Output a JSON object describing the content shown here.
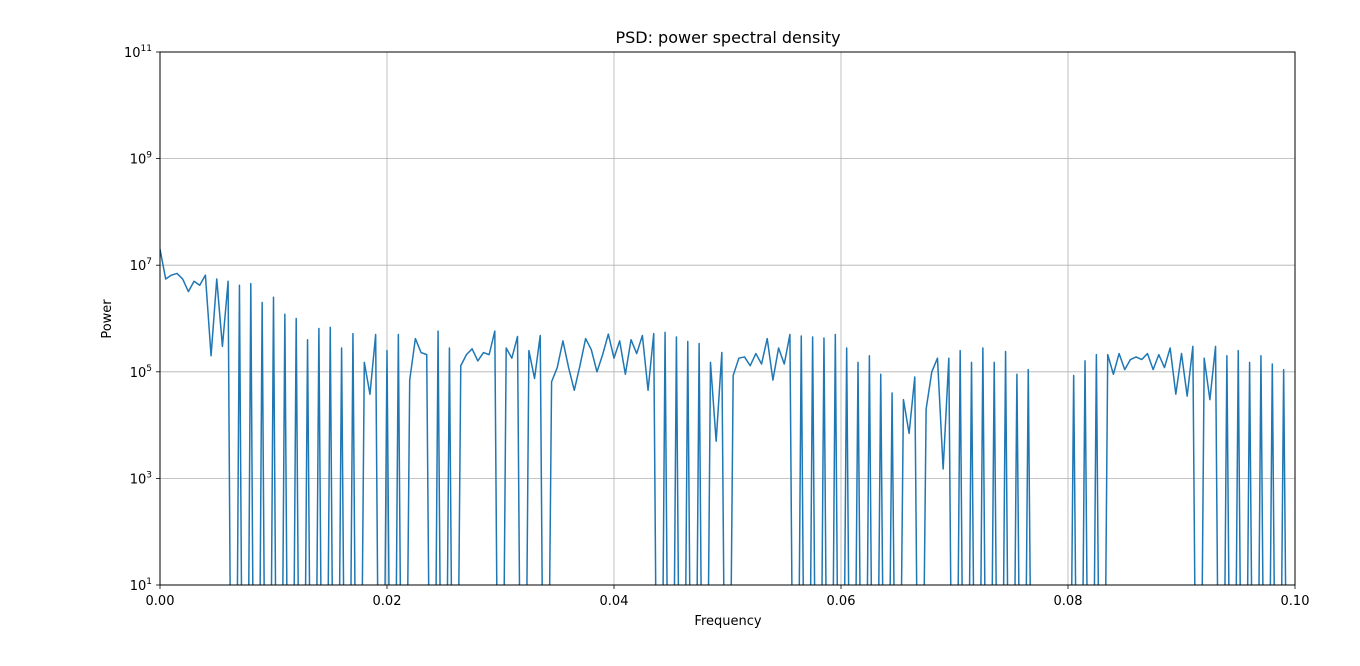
{
  "chart_data": {
    "type": "line",
    "title": "PSD: power spectral density",
    "xlabel": "Frequency",
    "ylabel": "Power",
    "xlim": [
      0.0,
      0.1
    ],
    "ylim": [
      10,
      100000000000
    ],
    "yscale": "log",
    "grid": true,
    "line_color": "#1f77b4",
    "x_ticks": [
      {
        "value": 0.0,
        "label": "0.00"
      },
      {
        "value": 0.02,
        "label": "0.02"
      },
      {
        "value": 0.04,
        "label": "0.04"
      },
      {
        "value": 0.06,
        "label": "0.06"
      },
      {
        "value": 0.08,
        "label": "0.08"
      },
      {
        "value": 0.1,
        "label": "0.10"
      }
    ],
    "y_ticks": [
      {
        "value": 10,
        "base": "10",
        "exp": "1"
      },
      {
        "value": 1000,
        "base": "10",
        "exp": "3"
      },
      {
        "value": 100000,
        "base": "10",
        "exp": "5"
      },
      {
        "value": 10000000,
        "base": "10",
        "exp": "7"
      },
      {
        "value": 1000000000,
        "base": "10",
        "exp": "9"
      },
      {
        "value": 100000000000,
        "base": "10",
        "exp": "11"
      }
    ],
    "series": [
      {
        "points": [
          [
            0.0,
            20000000
          ],
          [
            0.0005,
            5500000
          ],
          [
            0.001,
            6500000
          ],
          [
            0.0015,
            7000000
          ],
          [
            0.002,
            5500000
          ],
          [
            0.0025,
            3200000
          ],
          [
            0.003,
            5000000
          ],
          [
            0.0035,
            4200000
          ],
          [
            0.004,
            6500000
          ],
          [
            0.0045,
            200000
          ],
          [
            0.005,
            5500000
          ],
          [
            0.0055,
            300000
          ],
          [
            0.006,
            5000000
          ],
          [
            0.0062,
            0
          ],
          [
            0.0068,
            0
          ],
          [
            0.007,
            4200000
          ],
          [
            0.0072,
            0
          ],
          [
            0.0078,
            0
          ],
          [
            0.008,
            4500000
          ],
          [
            0.0082,
            0
          ],
          [
            0.0088,
            0
          ],
          [
            0.009,
            2000000
          ],
          [
            0.0092,
            0
          ],
          [
            0.0098,
            0
          ],
          [
            0.01,
            2500000
          ],
          [
            0.0102,
            0
          ],
          [
            0.0108,
            0
          ],
          [
            0.011,
            1200000
          ],
          [
            0.0112,
            0
          ],
          [
            0.0118,
            0
          ],
          [
            0.012,
            1000000
          ],
          [
            0.0122,
            0
          ],
          [
            0.0128,
            0
          ],
          [
            0.013,
            400000
          ],
          [
            0.0132,
            0
          ],
          [
            0.0138,
            0
          ],
          [
            0.014,
            650000
          ],
          [
            0.0142,
            0
          ],
          [
            0.0148,
            0
          ],
          [
            0.015,
            680000
          ],
          [
            0.0152,
            0
          ],
          [
            0.0158,
            0
          ],
          [
            0.016,
            280000
          ],
          [
            0.0162,
            0
          ],
          [
            0.0168,
            0
          ],
          [
            0.017,
            520000
          ],
          [
            0.0172,
            0
          ],
          [
            0.0178,
            0
          ],
          [
            0.018,
            150000
          ],
          [
            0.0185,
            38000
          ],
          [
            0.019,
            500000
          ],
          [
            0.0192,
            0
          ],
          [
            0.0198,
            0
          ],
          [
            0.02,
            250000
          ],
          [
            0.0202,
            0
          ],
          [
            0.0208,
            0
          ],
          [
            0.021,
            500000
          ],
          [
            0.0212,
            0
          ],
          [
            0.0218,
            0
          ],
          [
            0.022,
            70000
          ],
          [
            0.0225,
            420000
          ],
          [
            0.023,
            230000
          ],
          [
            0.0235,
            210000
          ],
          [
            0.0237,
            0
          ],
          [
            0.0243,
            0
          ],
          [
            0.0245,
            580000
          ],
          [
            0.0247,
            0
          ],
          [
            0.0253,
            0
          ],
          [
            0.0255,
            280000
          ],
          [
            0.0257,
            0
          ],
          [
            0.0263,
            0
          ],
          [
            0.0265,
            130000
          ],
          [
            0.027,
            210000
          ],
          [
            0.0275,
            270000
          ],
          [
            0.028,
            160000
          ],
          [
            0.0285,
            230000
          ],
          [
            0.029,
            210000
          ],
          [
            0.0295,
            580000
          ],
          [
            0.0297,
            0
          ],
          [
            0.0303,
            0
          ],
          [
            0.0305,
            280000
          ],
          [
            0.031,
            180000
          ],
          [
            0.0315,
            460000
          ],
          [
            0.0317,
            0
          ],
          [
            0.0323,
            0
          ],
          [
            0.0325,
            250000
          ],
          [
            0.033,
            75000
          ],
          [
            0.0335,
            480000
          ],
          [
            0.0337,
            0
          ],
          [
            0.0343,
            0
          ],
          [
            0.0345,
            65000
          ],
          [
            0.035,
            120000
          ],
          [
            0.0355,
            380000
          ],
          [
            0.036,
            120000
          ],
          [
            0.0365,
            45000
          ],
          [
            0.037,
            130000
          ],
          [
            0.0375,
            420000
          ],
          [
            0.038,
            260000
          ],
          [
            0.0385,
            100000
          ],
          [
            0.039,
            210000
          ],
          [
            0.0395,
            510000
          ],
          [
            0.04,
            180000
          ],
          [
            0.0405,
            380000
          ],
          [
            0.041,
            90000
          ],
          [
            0.0415,
            400000
          ],
          [
            0.042,
            220000
          ],
          [
            0.0425,
            480000
          ],
          [
            0.043,
            45000
          ],
          [
            0.0435,
            520000
          ],
          [
            0.0437,
            0
          ],
          [
            0.0443,
            0
          ],
          [
            0.0445,
            550000
          ],
          [
            0.0447,
            0
          ],
          [
            0.0453,
            0
          ],
          [
            0.0455,
            450000
          ],
          [
            0.0457,
            0
          ],
          [
            0.0463,
            0
          ],
          [
            0.0465,
            370000
          ],
          [
            0.0467,
            0
          ],
          [
            0.0473,
            0
          ],
          [
            0.0475,
            340000
          ],
          [
            0.0477,
            0
          ],
          [
            0.0483,
            0
          ],
          [
            0.0485,
            150000
          ],
          [
            0.049,
            5000
          ],
          [
            0.0495,
            230000
          ],
          [
            0.0497,
            0
          ],
          [
            0.0503,
            0
          ],
          [
            0.0505,
            85000
          ],
          [
            0.051,
            180000
          ],
          [
            0.0515,
            190000
          ],
          [
            0.052,
            130000
          ],
          [
            0.0525,
            220000
          ],
          [
            0.053,
            140000
          ],
          [
            0.0535,
            420000
          ],
          [
            0.054,
            70000
          ],
          [
            0.0545,
            280000
          ],
          [
            0.055,
            140000
          ],
          [
            0.0555,
            500000
          ],
          [
            0.0557,
            0
          ],
          [
            0.0563,
            0
          ],
          [
            0.0565,
            470000
          ],
          [
            0.0567,
            0
          ],
          [
            0.0573,
            0
          ],
          [
            0.0575,
            450000
          ],
          [
            0.0577,
            0
          ],
          [
            0.0583,
            0
          ],
          [
            0.0585,
            430000
          ],
          [
            0.0587,
            0
          ],
          [
            0.0593,
            0
          ],
          [
            0.0595,
            500000
          ],
          [
            0.0597,
            0
          ],
          [
            0.0603,
            0
          ],
          [
            0.0605,
            280000
          ],
          [
            0.0607,
            0
          ],
          [
            0.0613,
            0
          ],
          [
            0.0615,
            150000
          ],
          [
            0.0617,
            0
          ],
          [
            0.0623,
            0
          ],
          [
            0.0625,
            200000
          ],
          [
            0.0627,
            0
          ],
          [
            0.0633,
            0
          ],
          [
            0.0635,
            90000
          ],
          [
            0.0637,
            0
          ],
          [
            0.0643,
            0
          ],
          [
            0.0645,
            40000
          ],
          [
            0.0647,
            0
          ],
          [
            0.0653,
            0
          ],
          [
            0.0655,
            30000
          ],
          [
            0.066,
            7000
          ],
          [
            0.0665,
            80000
          ],
          [
            0.0667,
            0
          ],
          [
            0.0673,
            0
          ],
          [
            0.0675,
            20000
          ],
          [
            0.068,
            100000
          ],
          [
            0.0685,
            180000
          ],
          [
            0.069,
            1500
          ],
          [
            0.0695,
            180000
          ],
          [
            0.0697,
            0
          ],
          [
            0.0703,
            0
          ],
          [
            0.0705,
            250000
          ],
          [
            0.0707,
            0
          ],
          [
            0.0713,
            0
          ],
          [
            0.0715,
            150000
          ],
          [
            0.0717,
            0
          ],
          [
            0.0723,
            0
          ],
          [
            0.0725,
            280000
          ],
          [
            0.0727,
            0
          ],
          [
            0.0733,
            0
          ],
          [
            0.0735,
            150000
          ],
          [
            0.0737,
            0
          ],
          [
            0.0743,
            0
          ],
          [
            0.0745,
            240000
          ],
          [
            0.0747,
            0
          ],
          [
            0.0753,
            0
          ],
          [
            0.0755,
            90000
          ],
          [
            0.0757,
            0
          ],
          [
            0.0763,
            0
          ],
          [
            0.0765,
            110000
          ],
          [
            0.0767,
            0
          ],
          [
            0.0803,
            0
          ],
          [
            0.0805,
            85000
          ],
          [
            0.0807,
            0
          ],
          [
            0.0813,
            0
          ],
          [
            0.0815,
            160000
          ],
          [
            0.0817,
            0
          ],
          [
            0.0823,
            0
          ],
          [
            0.0825,
            210000
          ],
          [
            0.0827,
            0
          ],
          [
            0.0833,
            0
          ],
          [
            0.0835,
            210000
          ],
          [
            0.084,
            90000
          ],
          [
            0.0845,
            220000
          ],
          [
            0.085,
            110000
          ],
          [
            0.0855,
            170000
          ],
          [
            0.086,
            190000
          ],
          [
            0.0865,
            170000
          ],
          [
            0.087,
            220000
          ],
          [
            0.0875,
            110000
          ],
          [
            0.088,
            210000
          ],
          [
            0.0885,
            120000
          ],
          [
            0.089,
            280000
          ],
          [
            0.0895,
            38000
          ],
          [
            0.09,
            220000
          ],
          [
            0.0905,
            35000
          ],
          [
            0.091,
            300000
          ],
          [
            0.0912,
            0
          ],
          [
            0.0918,
            0
          ],
          [
            0.092,
            180000
          ],
          [
            0.0925,
            30000
          ],
          [
            0.093,
            300000
          ],
          [
            0.0932,
            0
          ],
          [
            0.0938,
            0
          ],
          [
            0.094,
            200000
          ],
          [
            0.0942,
            0
          ],
          [
            0.0948,
            0
          ],
          [
            0.095,
            250000
          ],
          [
            0.0952,
            0
          ],
          [
            0.0958,
            0
          ],
          [
            0.096,
            150000
          ],
          [
            0.0962,
            0
          ],
          [
            0.0968,
            0
          ],
          [
            0.097,
            200000
          ],
          [
            0.0972,
            0
          ],
          [
            0.0978,
            0
          ],
          [
            0.098,
            140000
          ],
          [
            0.0982,
            0
          ],
          [
            0.0988,
            0
          ],
          [
            0.099,
            110000
          ],
          [
            0.0992,
            0
          ]
        ]
      }
    ]
  }
}
